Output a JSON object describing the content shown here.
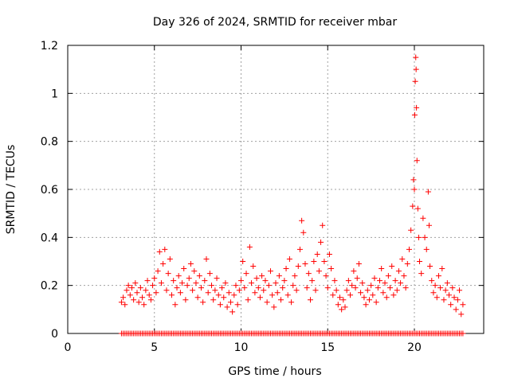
{
  "chart_data": {
    "type": "scatter",
    "title": "Day 326 of 2024, SRMTID for receiver mbar",
    "xlabel": "GPS time / hours",
    "ylabel": "SRMTID / TECUs",
    "xlim": [
      0,
      24
    ],
    "ylim": [
      0,
      1.2
    ],
    "xticks": [
      0,
      5,
      10,
      15,
      20
    ],
    "yticks": [
      0,
      0.2,
      0.4,
      0.6,
      0.8,
      1,
      1.2
    ],
    "xtick_labels": [
      "0",
      "5",
      "10",
      "15",
      "20"
    ],
    "ytick_labels": [
      "0",
      "0.2",
      "0.4",
      "0.6",
      "0.8",
      "1",
      "1.2"
    ],
    "grid": true,
    "marker": "+",
    "color": "#ff0000",
    "data_range_hours": [
      3.1,
      22.8
    ],
    "series": [
      {
        "name": "SRMTID",
        "points": [
          [
            3.1,
            0.13
          ],
          [
            3.2,
            0.15
          ],
          [
            3.3,
            0.12
          ],
          [
            3.4,
            0.18
          ],
          [
            3.5,
            0.2
          ],
          [
            3.6,
            0.16
          ],
          [
            3.7,
            0.19
          ],
          [
            3.8,
            0.14
          ],
          [
            3.9,
            0.21
          ],
          [
            4.0,
            0.17
          ],
          [
            4.1,
            0.13
          ],
          [
            4.2,
            0.19
          ],
          [
            4.3,
            0.15
          ],
          [
            4.4,
            0.12
          ],
          [
            4.5,
            0.18
          ],
          [
            4.6,
            0.22
          ],
          [
            4.7,
            0.16
          ],
          [
            4.8,
            0.14
          ],
          [
            4.9,
            0.2
          ],
          [
            5.0,
            0.23
          ],
          [
            5.1,
            0.17
          ],
          [
            5.2,
            0.26
          ],
          [
            5.3,
            0.34
          ],
          [
            5.4,
            0.21
          ],
          [
            5.5,
            0.29
          ],
          [
            5.6,
            0.35
          ],
          [
            5.7,
            0.18
          ],
          [
            5.8,
            0.25
          ],
          [
            5.9,
            0.31
          ],
          [
            6.0,
            0.16
          ],
          [
            6.1,
            0.22
          ],
          [
            6.2,
            0.12
          ],
          [
            6.3,
            0.19
          ],
          [
            6.4,
            0.24
          ],
          [
            6.5,
            0.17
          ],
          [
            6.6,
            0.21
          ],
          [
            6.7,
            0.27
          ],
          [
            6.8,
            0.14
          ],
          [
            6.9,
            0.2
          ],
          [
            7.0,
            0.23
          ],
          [
            7.1,
            0.29
          ],
          [
            7.2,
            0.18
          ],
          [
            7.3,
            0.26
          ],
          [
            7.4,
            0.21
          ],
          [
            7.5,
            0.15
          ],
          [
            7.6,
            0.24
          ],
          [
            7.7,
            0.19
          ],
          [
            7.8,
            0.13
          ],
          [
            7.9,
            0.22
          ],
          [
            8.0,
            0.31
          ],
          [
            8.1,
            0.17
          ],
          [
            8.2,
            0.25
          ],
          [
            8.3,
            0.2
          ],
          [
            8.4,
            0.14
          ],
          [
            8.5,
            0.18
          ],
          [
            8.6,
            0.23
          ],
          [
            8.7,
            0.16
          ],
          [
            8.8,
            0.12
          ],
          [
            8.9,
            0.19
          ],
          [
            9.0,
            0.15
          ],
          [
            9.1,
            0.21
          ],
          [
            9.2,
            0.11
          ],
          [
            9.3,
            0.17
          ],
          [
            9.4,
            0.13
          ],
          [
            9.5,
            0.09
          ],
          [
            9.6,
            0.16
          ],
          [
            9.7,
            0.2
          ],
          [
            9.8,
            0.12
          ],
          [
            9.9,
            0.18
          ],
          [
            10.0,
            0.22
          ],
          [
            10.1,
            0.3
          ],
          [
            10.2,
            0.19
          ],
          [
            10.3,
            0.25
          ],
          [
            10.4,
            0.14
          ],
          [
            10.5,
            0.36
          ],
          [
            10.6,
            0.21
          ],
          [
            10.7,
            0.28
          ],
          [
            10.8,
            0.17
          ],
          [
            10.9,
            0.23
          ],
          [
            11.0,
            0.19
          ],
          [
            11.1,
            0.15
          ],
          [
            11.2,
            0.24
          ],
          [
            11.3,
            0.18
          ],
          [
            11.4,
            0.22
          ],
          [
            11.5,
            0.13
          ],
          [
            11.6,
            0.2
          ],
          [
            11.7,
            0.26
          ],
          [
            11.8,
            0.16
          ],
          [
            11.9,
            0.11
          ],
          [
            12.0,
            0.21
          ],
          [
            12.1,
            0.17
          ],
          [
            12.2,
            0.24
          ],
          [
            12.3,
            0.14
          ],
          [
            12.4,
            0.19
          ],
          [
            12.5,
            0.22
          ],
          [
            12.6,
            0.27
          ],
          [
            12.7,
            0.16
          ],
          [
            12.8,
            0.31
          ],
          [
            12.9,
            0.13
          ],
          [
            13.0,
            0.2
          ],
          [
            13.1,
            0.24
          ],
          [
            13.2,
            0.18
          ],
          [
            13.3,
            0.28
          ],
          [
            13.4,
            0.35
          ],
          [
            13.5,
            0.47
          ],
          [
            13.6,
            0.42
          ],
          [
            13.7,
            0.29
          ],
          [
            13.8,
            0.19
          ],
          [
            13.9,
            0.25
          ],
          [
            14.0,
            0.14
          ],
          [
            14.1,
            0.22
          ],
          [
            14.2,
            0.3
          ],
          [
            14.3,
            0.18
          ],
          [
            14.4,
            0.33
          ],
          [
            14.5,
            0.26
          ],
          [
            14.6,
            0.38
          ],
          [
            14.7,
            0.45
          ],
          [
            14.8,
            0.3
          ],
          [
            14.9,
            0.24
          ],
          [
            15.0,
            0.19
          ],
          [
            15.1,
            0.33
          ],
          [
            15.2,
            0.27
          ],
          [
            15.3,
            0.16
          ],
          [
            15.4,
            0.22
          ],
          [
            15.5,
            0.18
          ],
          [
            15.6,
            0.12
          ],
          [
            15.7,
            0.15
          ],
          [
            15.8,
            0.1
          ],
          [
            15.9,
            0.14
          ],
          [
            16.0,
            0.11
          ],
          [
            16.1,
            0.18
          ],
          [
            16.2,
            0.22
          ],
          [
            16.3,
            0.16
          ],
          [
            16.4,
            0.2
          ],
          [
            16.5,
            0.26
          ],
          [
            16.6,
            0.19
          ],
          [
            16.7,
            0.23
          ],
          [
            16.8,
            0.29
          ],
          [
            16.9,
            0.17
          ],
          [
            17.0,
            0.21
          ],
          [
            17.1,
            0.15
          ],
          [
            17.2,
            0.12
          ],
          [
            17.3,
            0.18
          ],
          [
            17.4,
            0.14
          ],
          [
            17.5,
            0.2
          ],
          [
            17.6,
            0.16
          ],
          [
            17.7,
            0.23
          ],
          [
            17.8,
            0.13
          ],
          [
            17.9,
            0.19
          ],
          [
            18.0,
            0.22
          ],
          [
            18.1,
            0.27
          ],
          [
            18.2,
            0.17
          ],
          [
            18.3,
            0.21
          ],
          [
            18.4,
            0.15
          ],
          [
            18.5,
            0.24
          ],
          [
            18.6,
            0.19
          ],
          [
            18.7,
            0.28
          ],
          [
            18.8,
            0.16
          ],
          [
            18.9,
            0.22
          ],
          [
            19.0,
            0.18
          ],
          [
            19.1,
            0.26
          ],
          [
            19.2,
            0.21
          ],
          [
            19.3,
            0.31
          ],
          [
            19.4,
            0.24
          ],
          [
            19.5,
            0.19
          ],
          [
            19.6,
            0.29
          ],
          [
            19.7,
            0.35
          ],
          [
            19.8,
            0.43
          ],
          [
            19.9,
            0.53
          ],
          [
            19.95,
            0.64
          ],
          [
            20.0,
            0.6
          ],
          [
            20.02,
            0.91
          ],
          [
            20.05,
            1.05
          ],
          [
            20.08,
            1.15
          ],
          [
            20.1,
            1.1
          ],
          [
            20.12,
            0.94
          ],
          [
            20.15,
            0.72
          ],
          [
            20.2,
            0.52
          ],
          [
            20.25,
            0.4
          ],
          [
            20.3,
            0.3
          ],
          [
            20.4,
            0.25
          ],
          [
            20.5,
            0.48
          ],
          [
            20.6,
            0.4
          ],
          [
            20.7,
            0.35
          ],
          [
            20.8,
            0.59
          ],
          [
            20.85,
            0.45
          ],
          [
            20.9,
            0.28
          ],
          [
            21.0,
            0.22
          ],
          [
            21.1,
            0.17
          ],
          [
            21.2,
            0.2
          ],
          [
            21.3,
            0.15
          ],
          [
            21.4,
            0.24
          ],
          [
            21.5,
            0.19
          ],
          [
            21.6,
            0.27
          ],
          [
            21.7,
            0.14
          ],
          [
            21.8,
            0.18
          ],
          [
            21.9,
            0.21
          ],
          [
            22.0,
            0.16
          ],
          [
            22.1,
            0.12
          ],
          [
            22.2,
            0.19
          ],
          [
            22.3,
            0.15
          ],
          [
            22.4,
            0.1
          ],
          [
            22.5,
            0.14
          ],
          [
            22.6,
            0.18
          ],
          [
            22.7,
            0.08
          ],
          [
            22.8,
            0.12
          ]
        ]
      }
    ]
  }
}
